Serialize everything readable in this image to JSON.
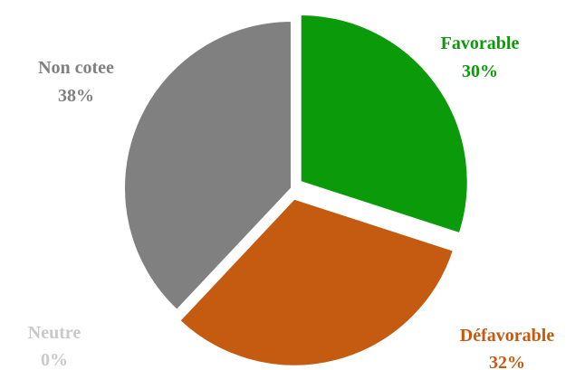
{
  "chart_data": {
    "type": "pie",
    "title": "",
    "slices": [
      {
        "label": "Favorable",
        "value": 30,
        "value_label": "30%",
        "color": "#0a9a0a",
        "label_color": "#0a9a0a",
        "exploded": true
      },
      {
        "label": "Défavorable",
        "value": 32,
        "value_label": "32%",
        "color": "#c55a11",
        "label_color": "#c55a11",
        "exploded": true
      },
      {
        "label": "Neutre",
        "value": 0,
        "value_label": "0%",
        "color": "#c9c9c9",
        "label_color": "#c9c9c9",
        "exploded": true
      },
      {
        "label": "Non cotee",
        "value": 38,
        "value_label": "38%",
        "color": "#808080",
        "label_color": "#808080",
        "exploded": false
      }
    ],
    "legend": "none"
  }
}
